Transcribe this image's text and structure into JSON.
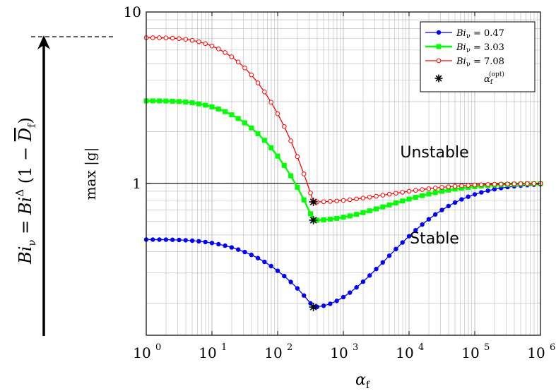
{
  "chart_data": {
    "type": "line",
    "xscale": "log",
    "yscale": "log",
    "xlim": [
      1,
      1000000
    ],
    "ylim": [
      0.13,
      10
    ],
    "grid": true,
    "legend_position": "top-right",
    "xlabel": "α_f",
    "ylabel": "max |g|",
    "x_ticks": [
      {
        "base": "10",
        "exp": "0"
      },
      {
        "base": "10",
        "exp": "1"
      },
      {
        "base": "10",
        "exp": "2"
      },
      {
        "base": "10",
        "exp": "3"
      },
      {
        "base": "10",
        "exp": "4"
      },
      {
        "base": "10",
        "exp": "5"
      },
      {
        "base": "10",
        "exp": "6"
      }
    ],
    "y_ticks": [
      "1",
      "10"
    ],
    "reference_line": {
      "y": 1
    },
    "arrow_label": "Bi_ν = Bi^Δ (1 − D̄_f)",
    "annotations": {
      "unstable": "Unstable",
      "stable": "Stable"
    },
    "series": [
      {
        "name": "Bi_ν = 0.47",
        "color": "#0000ff",
        "marker": "circle-filled",
        "plateau": 0.47,
        "minimum": 0.19
      },
      {
        "name": "Bi_ν = 3.03",
        "color": "#00ff00",
        "marker": "square-filled",
        "plateau": 3.03,
        "minimum": 0.61
      },
      {
        "name": "Bi_ν = 7.08",
        "color": "#ff0000",
        "marker": "circle-open",
        "plateau": 7.08,
        "minimum": 0.78
      }
    ],
    "optimum": {
      "name": "α_f^(opt)",
      "marker": "asterisk",
      "x": 350,
      "points": [
        0.19,
        0.61,
        0.78
      ]
    }
  },
  "legend": {
    "entries": [
      {
        "prefix": "Bi",
        "sub": "ν",
        "value": " = 0.47"
      },
      {
        "prefix": "Bi",
        "sub": "ν",
        "value": " = 3.03"
      },
      {
        "prefix": "Bi",
        "sub": "ν",
        "value": " = 7.08"
      }
    ],
    "opt_base": "α",
    "opt_sub": "f",
    "opt_sup": "(opt)"
  },
  "colors": {
    "series_blue": "#0000ff",
    "series_green": "#00ff00",
    "series_red": "#ff0000",
    "grid": "#b8b8b8",
    "axis": "#000000"
  }
}
